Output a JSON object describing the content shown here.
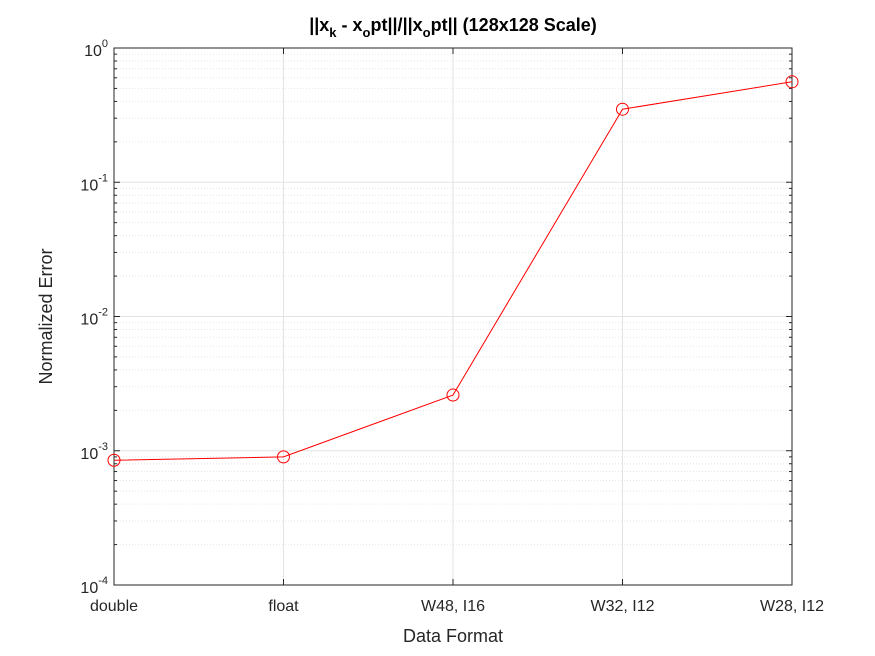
{
  "chart_data": {
    "type": "line",
    "title": {
      "parts": [
        {
          "t": "||x",
          "sub": false
        },
        {
          "t": "k",
          "sub": true
        },
        {
          "t": " - x",
          "sub": false
        },
        {
          "t": "o",
          "sub": true
        },
        {
          "t": "pt||/||x",
          "sub": false
        },
        {
          "t": "o",
          "sub": true
        },
        {
          "t": "pt|| (128x128 Scale)",
          "sub": false
        }
      ]
    },
    "xlabel": "Data Format",
    "ylabel": "Normalized Error",
    "categories": [
      "double",
      "float",
      "W48, I16",
      "W32, I12",
      "W28, I12"
    ],
    "yscale": "log",
    "ylim": [
      0.0001,
      1
    ],
    "yticks": [
      {
        "base": "10",
        "exp": "-4"
      },
      {
        "base": "10",
        "exp": "-3"
      },
      {
        "base": "10",
        "exp": "-2"
      },
      {
        "base": "10",
        "exp": "-1"
      },
      {
        "base": "10",
        "exp": "0"
      }
    ],
    "grid": true,
    "minor_grid": true,
    "series": [
      {
        "color": "#ff0000",
        "marker": "circle",
        "values": [
          0.00085,
          0.0009,
          0.0026,
          0.35,
          0.56
        ]
      }
    ]
  }
}
